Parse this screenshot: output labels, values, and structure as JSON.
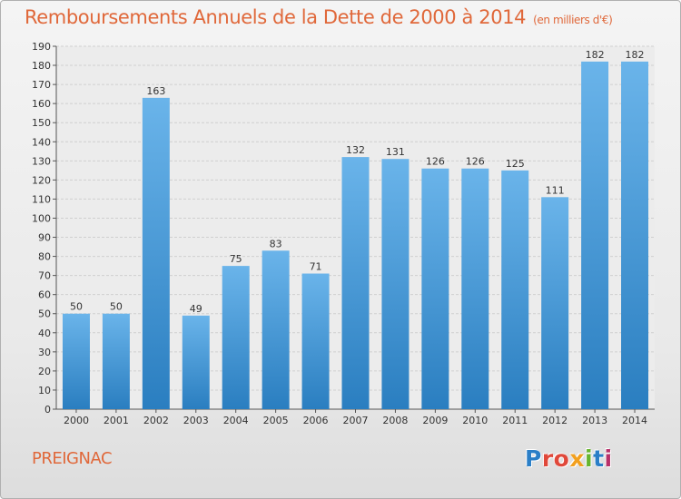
{
  "header": {
    "title": "Remboursements Annuels de la Dette de 2000 à 2014",
    "unit": "(en milliers d'€)"
  },
  "footer": {
    "town": "PREIGNAC",
    "logo": "Proxiti"
  },
  "colors": {
    "bar_light": "#6ab4ea",
    "bar_dark": "#2a7ec0",
    "title": "#e0683a",
    "logo_letters": [
      "#2b7fc7",
      "#e0483a",
      "#e0483a",
      "#f2a01e",
      "#66b52e",
      "#2b7fc7",
      "#b8306a"
    ]
  },
  "chart_data": {
    "type": "bar",
    "title": "Remboursements Annuels de la Dette de 2000 à 2014",
    "ylabel": "en milliers d'€",
    "categories": [
      "2000",
      "2001",
      "2002",
      "2003",
      "2004",
      "2005",
      "2006",
      "2007",
      "2008",
      "2009",
      "2010",
      "2011",
      "2012",
      "2013",
      "2014"
    ],
    "values": [
      50,
      50,
      163,
      49,
      75,
      83,
      71,
      132,
      131,
      126,
      126,
      125,
      111,
      182,
      182
    ],
    "ylim": [
      0,
      190
    ],
    "yticks": [
      0,
      10,
      20,
      30,
      40,
      50,
      60,
      70,
      80,
      90,
      100,
      110,
      120,
      130,
      140,
      150,
      160,
      170,
      180,
      190
    ],
    "grid": true
  }
}
